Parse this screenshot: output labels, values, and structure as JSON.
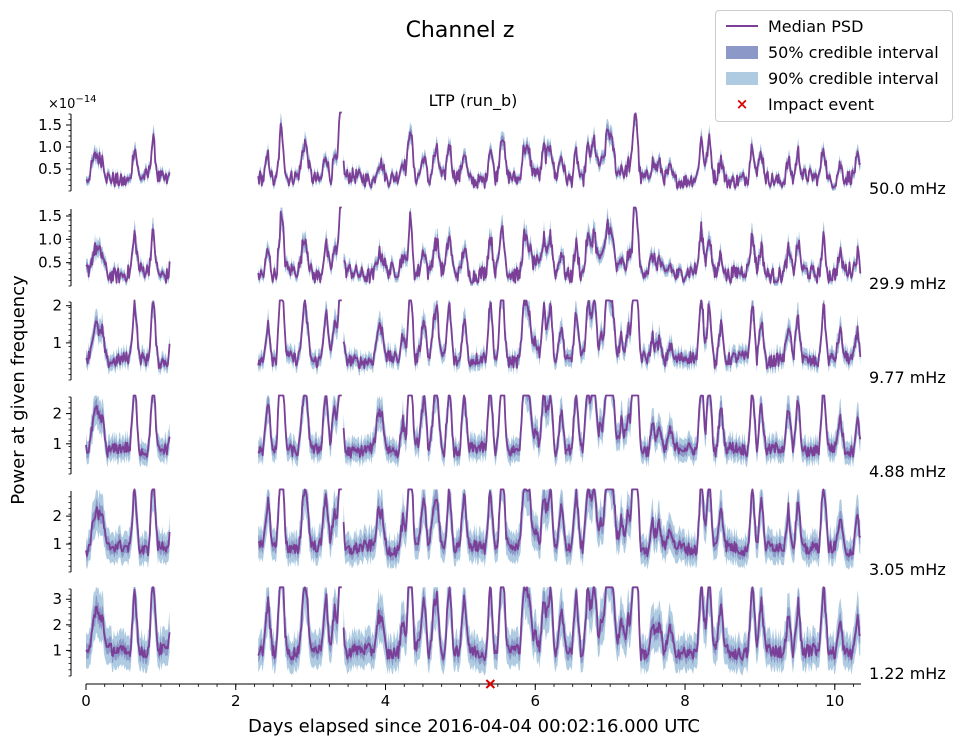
{
  "figure": {
    "title": "Channel z",
    "subtitle": "LTP (run_b)",
    "xlabel": "Days elapsed since 2016-04-04 00:02:16.000 UTC",
    "ylabel": "Power at given frequency",
    "exponent_label": "×10",
    "exponent_power": "−14"
  },
  "legend": {
    "median": "Median PSD",
    "ci50": "50% credible interval",
    "ci90": "90% credible interval",
    "impact": "Impact event"
  },
  "colors": {
    "median": "#7b3f98",
    "ci50": "#8c98c8",
    "ci90": "#aecbe2",
    "impact": "#e00000"
  },
  "chart_data": {
    "type": "line",
    "x_range": [
      0,
      10.35
    ],
    "x_ticks": [
      0,
      2,
      4,
      6,
      8,
      10
    ],
    "gap": [
      1.12,
      2.3
    ],
    "impact_event_day": 5.4,
    "panels": [
      {
        "frequency": "50.0 mHz",
        "ylim": [
          0,
          1.75
        ],
        "yticks": [
          0.5,
          1.0,
          1.5
        ],
        "ytick_labels": [
          "0.5",
          "1.0",
          "1.5"
        ],
        "base": 0.28,
        "noise": 0.22,
        "ci50": 0.05,
        "ci90": 0.08
      },
      {
        "frequency": "29.9 mHz",
        "ylim": [
          0,
          1.65
        ],
        "yticks": [
          0.5,
          1.0,
          1.5
        ],
        "ytick_labels": [
          "0.5",
          "1.0",
          "1.5"
        ],
        "base": 0.28,
        "noise": 0.22,
        "ci50": 0.05,
        "ci90": 0.09
      },
      {
        "frequency": "9.77 mHz",
        "ylim": [
          0,
          2.1
        ],
        "yticks": [
          1,
          2
        ],
        "ytick_labels": [
          "1",
          "2"
        ],
        "base": 0.55,
        "noise": 0.22,
        "ci50": 0.08,
        "ci90": 0.16
      },
      {
        "frequency": "4.88 mHz",
        "ylim": [
          0,
          2.55
        ],
        "yticks": [
          1,
          2
        ],
        "ytick_labels": [
          "1",
          "2"
        ],
        "base": 0.8,
        "noise": 0.25,
        "ci50": 0.14,
        "ci90": 0.28
      },
      {
        "frequency": "3.05 mHz",
        "ylim": [
          0,
          2.9
        ],
        "yticks": [
          1,
          2
        ],
        "ytick_labels": [
          "1",
          "2"
        ],
        "base": 0.85,
        "noise": 0.28,
        "ci50": 0.18,
        "ci90": 0.38
      },
      {
        "frequency": "1.22 mHz",
        "ylim": [
          0,
          3.4
        ],
        "yticks": [
          1,
          2,
          3
        ],
        "ytick_labels": [
          "1",
          "2",
          "3"
        ],
        "base": 0.95,
        "noise": 0.32,
        "ci50": 0.22,
        "ci90": 0.48
      }
    ]
  }
}
